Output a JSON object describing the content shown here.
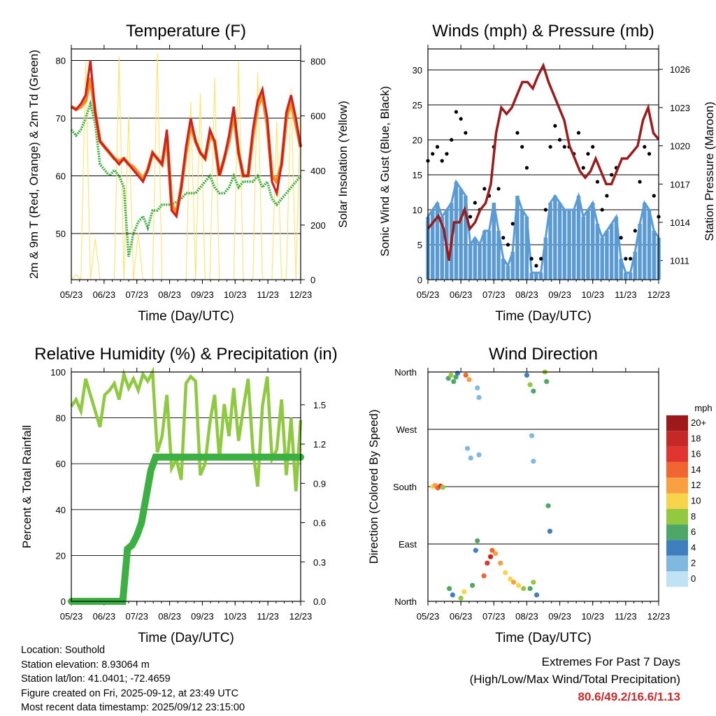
{
  "x_ticks": [
    "05/23",
    "06/23",
    "07/23",
    "08/23",
    "09/23",
    "10/23",
    "11/23",
    "12/23"
  ],
  "x_axis_label": "Time (Day/UTC)",
  "colors": {
    "temp_2m": "#cc2222",
    "temp_9m": "#f58a1e",
    "dewpoint": "#3cae3c",
    "insolation": "#ffe266",
    "wind": "#5a9bd5",
    "gust": "#000000",
    "pressure": "#9b1c1c",
    "rh": "#8fc940",
    "rain": "#3cb043"
  },
  "chart_data": [
    {
      "type": "line",
      "title": "Temperature (F)",
      "xlabel": "Time (Day/UTC)",
      "ylabel": "2m & 9m T (Red, Orange) & 2m Td (Green)",
      "y2label": "Solar Insolation (Yellow)",
      "ylim": [
        42,
        82
      ],
      "yticks": [
        50,
        60,
        70,
        80
      ],
      "y2lim": [
        0,
        845
      ],
      "y2ticks": [
        0,
        200,
        400,
        600,
        800
      ],
      "series": [
        {
          "name": "2m T",
          "values": [
            72,
            71.5,
            72.5,
            74,
            80,
            71,
            66,
            65,
            64,
            63,
            62,
            63,
            62,
            61,
            60,
            59,
            61,
            64,
            63,
            62,
            68,
            54,
            53,
            58,
            65,
            70,
            66,
            64,
            63,
            68,
            66,
            60,
            63,
            67,
            72,
            64,
            60,
            60,
            68,
            73,
            75,
            70,
            59,
            57,
            62,
            71,
            74,
            70,
            65
          ]
        },
        {
          "name": "9m T",
          "values": [
            72,
            71.5,
            72,
            73,
            77,
            71,
            66,
            65,
            64,
            63,
            62.5,
            63,
            62,
            61.5,
            60.5,
            59.5,
            61,
            64,
            63,
            62,
            67,
            55,
            53.5,
            58,
            64,
            69,
            66,
            64,
            63,
            67,
            66,
            60,
            63,
            66,
            71,
            64,
            60,
            60,
            67,
            72,
            74,
            69,
            60,
            59,
            62,
            70,
            73,
            69,
            65
          ]
        },
        {
          "name": "2m Td",
          "values": [
            68,
            67,
            68,
            70,
            72.5,
            69,
            62,
            61,
            60,
            61,
            60,
            58,
            46,
            50,
            52,
            53,
            51,
            54,
            54,
            55,
            55,
            55,
            55.5,
            56,
            57,
            57,
            57,
            58,
            59,
            60,
            58,
            57,
            57,
            58,
            60,
            58,
            59,
            59,
            59,
            60,
            58,
            59,
            56,
            55,
            56,
            57,
            58,
            59,
            60
          ]
        },
        {
          "name": "Solar Insolation",
          "values": [
            0,
            20,
            0,
            800,
            0,
            150,
            0,
            0,
            0,
            0,
            820,
            0,
            600,
            0,
            170,
            0,
            0,
            0,
            830,
            0,
            0,
            0,
            0,
            0,
            0,
            650,
            0,
            680,
            0,
            0,
            740,
            0,
            0,
            0,
            0,
            800,
            0,
            0,
            0,
            760,
            0,
            0,
            0,
            580,
            0,
            0,
            700,
            0,
            650
          ]
        }
      ]
    },
    {
      "type": "line",
      "title": "Winds (mph) & Pressure (mb)",
      "xlabel": "Time (Day/UTC)",
      "ylabel": "Sonic Wind & Gust (Blue, Black)",
      "y2label": "Station Pressure (Maroon)",
      "ylim": [
        0,
        33
      ],
      "yticks": [
        0,
        5,
        10,
        15,
        20,
        25,
        30
      ],
      "y2lim": [
        1009.5,
        1027.6
      ],
      "y2ticks": [
        1011,
        1014,
        1017,
        1020,
        1023,
        1026
      ],
      "series": [
        {
          "name": "Gust",
          "values": [
            17,
            18,
            19,
            17,
            18,
            20,
            24,
            23,
            21,
            9,
            11,
            10,
            13,
            12,
            19,
            13,
            6,
            5,
            8,
            21,
            19,
            16,
            3,
            2,
            3,
            10,
            19,
            22,
            20,
            19,
            19,
            18,
            21,
            16,
            18,
            19,
            14,
            10,
            12,
            15,
            16,
            6,
            3,
            3,
            7,
            14,
            19,
            18,
            12,
            9
          ]
        },
        {
          "name": "Sonic Wind",
          "values": [
            9,
            10,
            11,
            9,
            10,
            11,
            14,
            13,
            12,
            5,
            6,
            5,
            7,
            7,
            11,
            7,
            3,
            2,
            4,
            12,
            10,
            9,
            1,
            1,
            1,
            6,
            11,
            12,
            11,
            10,
            10,
            10,
            12,
            9,
            10,
            11,
            8,
            6,
            7,
            8,
            9,
            3,
            1,
            1,
            4,
            8,
            11,
            10,
            7,
            6
          ]
        },
        {
          "name": "Station Pressure",
          "values": [
            1013.5,
            1014,
            1014.5,
            1013.5,
            1011,
            1014,
            1014,
            1015,
            1013.5,
            1014,
            1015,
            1015.5,
            1017,
            1021,
            1023,
            1022.5,
            1023,
            1024,
            1025,
            1025,
            1024.5,
            1025.5,
            1026.3,
            1025,
            1024,
            1023,
            1022,
            1020,
            1019,
            1018,
            1017.5,
            1018,
            1019,
            1018,
            1017,
            1017,
            1018,
            1019,
            1019,
            1019.5,
            1020,
            1022,
            1023,
            1021,
            1020.5
          ]
        }
      ]
    },
    {
      "type": "line",
      "title": "Relative Humidity (%) & Precipitation (in)",
      "xlabel": "Time (Day/UTC)",
      "ylabel": "Percent & Total Rainfall",
      "ylim": [
        0,
        100
      ],
      "yticks": [
        0,
        20,
        40,
        60,
        80,
        100
      ],
      "y2lim": [
        0,
        1.75
      ],
      "y2ticks": [
        "0.0",
        "0.3",
        "0.6",
        "0.9",
        "1.2",
        "1.5"
      ],
      "series": [
        {
          "name": "Relative Humidity",
          "values": [
            85,
            88,
            83,
            97,
            90,
            83,
            76,
            90,
            92,
            95,
            88,
            99,
            93,
            97,
            92,
            99,
            96,
            100,
            65,
            72,
            90,
            58,
            62,
            53,
            95,
            98,
            96,
            55,
            60,
            78,
            90,
            62,
            86,
            72,
            93,
            70,
            84,
            97,
            66,
            50,
            85,
            98,
            62,
            66,
            88,
            55,
            80,
            48,
            79
          ]
        },
        {
          "name": "Total Precipitation",
          "values": [
            0,
            0,
            0,
            0,
            0,
            0,
            0,
            0,
            0,
            0,
            0,
            0,
            0.4,
            0.43,
            0.5,
            0.6,
            0.8,
            1.0,
            1.1,
            1.1,
            1.1,
            1.1,
            1.1,
            1.1,
            1.1,
            1.1,
            1.1,
            1.1,
            1.1,
            1.1,
            1.1,
            1.1,
            1.1,
            1.1,
            1.1,
            1.1,
            1.1,
            1.1,
            1.1,
            1.1,
            1.1,
            1.1,
            1.1,
            1.1,
            1.1,
            1.1,
            1.1,
            1.1,
            1.1,
            1.1
          ]
        }
      ]
    },
    {
      "type": "scatter",
      "title": "Wind Direction",
      "xlabel": "Time (Day/UTC)",
      "ylabel": "Direction (Colored By Speed)",
      "yticks": [
        "North",
        "East",
        "South",
        "West",
        "North"
      ],
      "colorbar_title": "mph",
      "colorbar_labels": [
        "20+",
        "18",
        "16",
        "14",
        "12",
        "10",
        "8",
        "6",
        "4",
        "2",
        "0"
      ],
      "colorbar_colors": [
        "#9e1a1a",
        "#c62828",
        "#e03530",
        "#f06530",
        "#f9a040",
        "#f7d44a",
        "#94c83f",
        "#4da868",
        "#3f7fbf",
        "#80b8e0",
        "#bfe3f5"
      ],
      "points": [
        {
          "x": 0.15,
          "dir": 180,
          "speed": 10
        },
        {
          "x": 0.22,
          "dir": 182,
          "speed": 12
        },
        {
          "x": 0.3,
          "dir": 178,
          "speed": 14
        },
        {
          "x": 0.38,
          "dir": 181,
          "speed": 16
        },
        {
          "x": 0.45,
          "dir": 179,
          "speed": 8
        },
        {
          "x": 0.62,
          "dir": 350,
          "speed": 6
        },
        {
          "x": 0.7,
          "dir": 355,
          "speed": 8
        },
        {
          "x": 0.78,
          "dir": 345,
          "speed": 5
        },
        {
          "x": 0.85,
          "dir": 352,
          "speed": 6
        },
        {
          "x": 0.9,
          "dir": 358,
          "speed": 4
        },
        {
          "x": 1.15,
          "dir": 355,
          "speed": 14
        },
        {
          "x": 1.25,
          "dir": 348,
          "speed": 12
        },
        {
          "x": 1.5,
          "dir": 335,
          "speed": 2
        },
        {
          "x": 1.55,
          "dir": 320,
          "speed": 1
        },
        {
          "x": 1.55,
          "dir": 230,
          "speed": 1
        },
        {
          "x": 1.2,
          "dir": 240,
          "speed": 1
        },
        {
          "x": 1.3,
          "dir": 225,
          "speed": 2
        },
        {
          "x": 0.65,
          "dir": 20,
          "speed": 6
        },
        {
          "x": 0.75,
          "dir": 10,
          "speed": 4
        },
        {
          "x": 1.0,
          "dir": 5,
          "speed": 8
        },
        {
          "x": 1.1,
          "dir": 15,
          "speed": 10
        },
        {
          "x": 1.35,
          "dir": 25,
          "speed": 6
        },
        {
          "x": 1.45,
          "dir": 80,
          "speed": 4
        },
        {
          "x": 1.5,
          "dir": 95,
          "speed": 6
        },
        {
          "x": 1.7,
          "dir": 40,
          "speed": 14
        },
        {
          "x": 1.8,
          "dir": 60,
          "speed": 16
        },
        {
          "x": 1.9,
          "dir": 70,
          "speed": 18
        },
        {
          "x": 1.95,
          "dir": 80,
          "speed": 14
        },
        {
          "x": 2.05,
          "dir": 75,
          "speed": 12
        },
        {
          "x": 2.2,
          "dir": 60,
          "speed": 12
        },
        {
          "x": 2.35,
          "dir": 45,
          "speed": 10
        },
        {
          "x": 2.5,
          "dir": 35,
          "speed": 10
        },
        {
          "x": 2.6,
          "dir": 30,
          "speed": 12
        },
        {
          "x": 2.75,
          "dir": 25,
          "speed": 10
        },
        {
          "x": 2.9,
          "dir": 20,
          "speed": 8
        },
        {
          "x": 3.0,
          "dir": 355,
          "speed": 4
        },
        {
          "x": 3.1,
          "dir": 340,
          "speed": 8
        },
        {
          "x": 3.2,
          "dir": 330,
          "speed": 6
        },
        {
          "x": 3.15,
          "dir": 260,
          "speed": 2
        },
        {
          "x": 3.2,
          "dir": 220,
          "speed": 2
        },
        {
          "x": 3.1,
          "dir": 20,
          "speed": 6
        },
        {
          "x": 3.2,
          "dir": 30,
          "speed": 8
        },
        {
          "x": 3.3,
          "dir": 10,
          "speed": 4
        },
        {
          "x": 3.55,
          "dir": 360,
          "speed": 8
        },
        {
          "x": 3.6,
          "dir": 345,
          "speed": 6
        },
        {
          "x": 3.65,
          "dir": 150,
          "speed": 6
        },
        {
          "x": 3.7,
          "dir": 110,
          "speed": 4
        }
      ]
    }
  ],
  "station_info": {
    "location": "Location: Southold",
    "elevation": "Station elevation: 8.93064 m",
    "latlon": "Station lat/lon: 41.0401; -72.4659",
    "created": "Figure created on Fri, 2025-09-12, at 23:49 UTC",
    "recent": "Most recent data timestamp: 2025/09/12 23:15:00"
  },
  "extremes": {
    "line1": "Extremes For Past 7 Days",
    "line2": "(High/Low/Max Wind/Total Precipitation)",
    "values": "80.6/49.2/16.6/1.13"
  }
}
